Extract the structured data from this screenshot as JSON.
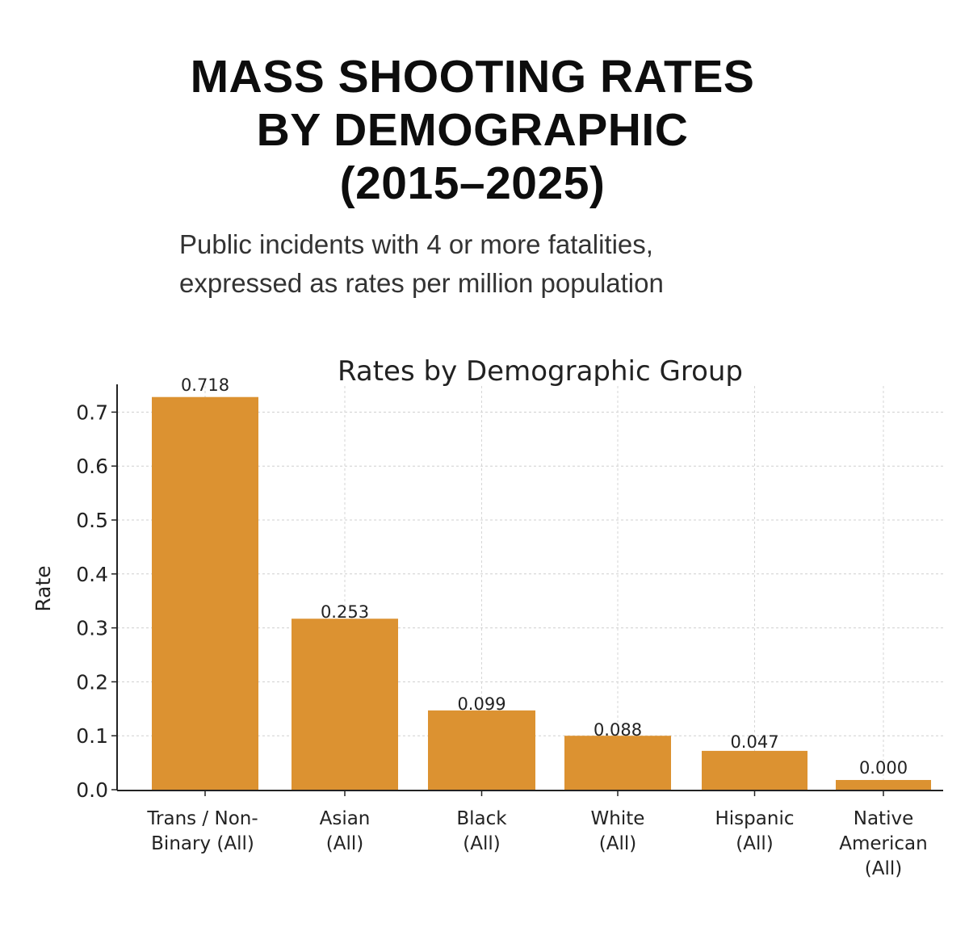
{
  "header": {
    "title_lines": [
      "MASS SHOOTING RATES",
      "BY DEMOGRAPHIC",
      "(2015–2025)"
    ],
    "subtitle_lines": [
      "Public incidents with 4 or more fatalities,",
      "expressed as rates per million population"
    ]
  },
  "chart_data": {
    "type": "bar",
    "title": "Rates by Demographic Group",
    "ylabel": "Rate",
    "xlabel": "",
    "categories": [
      [
        "Trans / Non-",
        "Binary (All)"
      ],
      [
        "Asian",
        "(All)"
      ],
      [
        "Black",
        "(All)"
      ],
      [
        "White",
        "(All)"
      ],
      [
        "Hispanic",
        "(All)"
      ],
      [
        "Native",
        "American",
        "(All)"
      ]
    ],
    "values": [
      0.718,
      0.253,
      0.099,
      0.088,
      0.047,
      0.0
    ],
    "bar_heights_shown": [
      0.728,
      0.317,
      0.147,
      0.1,
      0.072,
      0.018
    ],
    "data_labels": [
      "0.718",
      "0.253",
      "0.099",
      "0.088",
      "0.047",
      "0.000"
    ],
    "yticks": [
      "0.0",
      "0.1",
      "0.2",
      "0.3",
      "0.4",
      "0.5",
      "0.6",
      "0.7"
    ],
    "ylim": [
      0,
      0.75
    ],
    "grid": true,
    "bar_color": "#dc9231"
  }
}
